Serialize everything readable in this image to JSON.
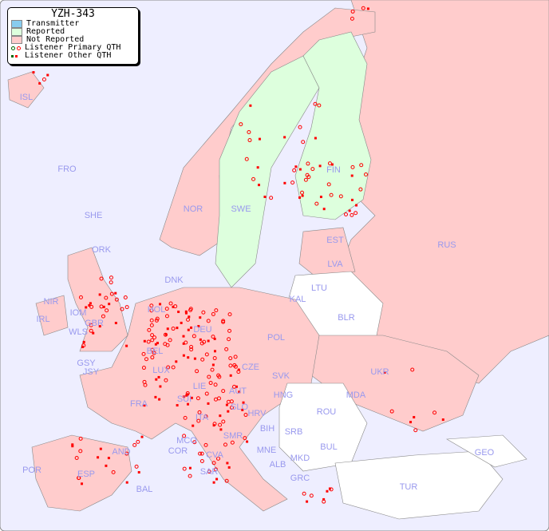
{
  "title": "YZH-343",
  "legend": {
    "items": [
      {
        "label": "Transmitter",
        "color": "#88ccee"
      },
      {
        "label": "Reported",
        "color": "#ddffdd"
      },
      {
        "label": "Not Reported",
        "color": "#ffcccc"
      },
      {
        "label": "Listener Primary QTH",
        "marker": "circle",
        "colors": [
          "#006600",
          "#ff0000"
        ]
      },
      {
        "label": "Listener Other QTH",
        "marker": "square",
        "colors": [
          "#006600",
          "#ff0000"
        ]
      }
    ]
  },
  "colors": {
    "sea": "#eeeeff",
    "reported": "#ddffdd",
    "not_reported": "#ffcccc",
    "no_data": "#ffffff",
    "label": "#9999ee",
    "marker": "#ff0000"
  },
  "countries": [
    "ISL",
    "FRO",
    "SHE",
    "ORK",
    "NOR",
    "SWE",
    "FIN",
    "EST",
    "LVA",
    "LTU",
    "RUS",
    "KAL",
    "BLR",
    "DNK",
    "HOL",
    "BEL",
    "DEU",
    "POL",
    "IRL",
    "NIR",
    "GBR",
    "IOM",
    "WLS",
    "GSY",
    "JSY",
    "LUX",
    "FRA",
    "SUI",
    "LIE",
    "AUT",
    "CZE",
    "SVK",
    "HNG",
    "UKR",
    "MDA",
    "ROU",
    "SLO",
    "HRV",
    "BIH",
    "SRB",
    "ITA",
    "MCO",
    "COR",
    "SAR",
    "SMR",
    "CVA",
    "MNE",
    "ALB",
    "MKD",
    "BUL",
    "GRC",
    "TUR",
    "GEO",
    "AND",
    "POR",
    "ESP",
    "BAL"
  ]
}
